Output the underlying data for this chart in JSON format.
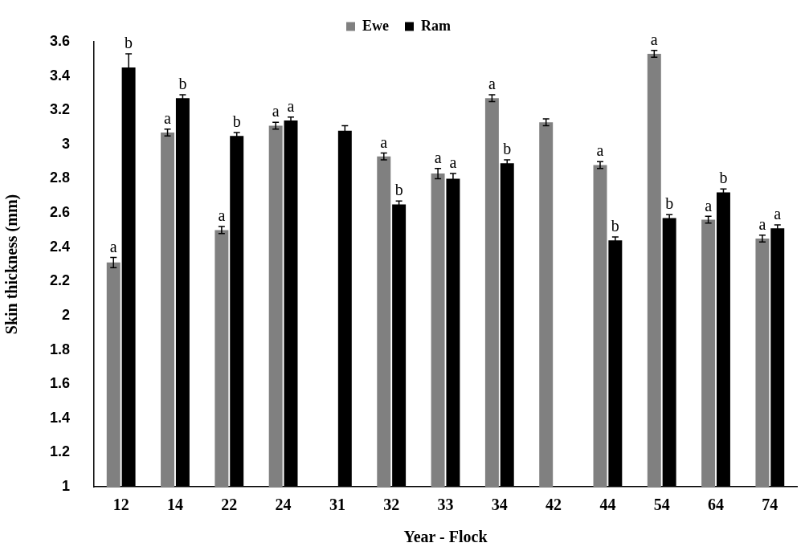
{
  "chart_data": {
    "type": "bar",
    "xlabel": "Year - Flock",
    "ylabel": "Skin thickness (mm)",
    "categories": [
      "12",
      "14",
      "22",
      "24",
      "31",
      "32",
      "33",
      "34",
      "42",
      "44",
      "54",
      "64",
      "74"
    ],
    "series": [
      {
        "name": "Ewe",
        "color": "#808080",
        "values": [
          2.31,
          3.07,
          2.5,
          3.11,
          null,
          2.93,
          2.83,
          3.27,
          3.13,
          2.88,
          3.53,
          2.56,
          2.45
        ],
        "errors": [
          0.03,
          0.02,
          0.02,
          0.02,
          null,
          0.02,
          0.03,
          0.02,
          0.02,
          0.02,
          0.02,
          0.02,
          0.02
        ],
        "value_labels": [
          "a",
          "a",
          "a",
          "a",
          null,
          "a",
          "a",
          "a",
          null,
          "a",
          "a",
          "a",
          "a"
        ]
      },
      {
        "name": "Ram",
        "color": "#000000",
        "values": [
          3.45,
          3.27,
          3.05,
          3.14,
          3.08,
          2.65,
          2.8,
          2.89,
          null,
          2.44,
          2.57,
          2.72,
          2.51
        ],
        "errors": [
          0.08,
          0.02,
          0.02,
          0.02,
          0.03,
          0.02,
          0.03,
          0.02,
          null,
          0.02,
          0.02,
          0.02,
          0.02
        ],
        "value_labels": [
          "b",
          "b",
          "b",
          "a",
          null,
          "b",
          "a",
          "b",
          null,
          "b",
          "b",
          "b",
          "a"
        ]
      }
    ],
    "ylim": [
      1,
      3.6
    ],
    "yticks": [
      1,
      1.2,
      1.4,
      1.6,
      1.8,
      2,
      2.2,
      2.4,
      2.6,
      2.8,
      3,
      3.2,
      3.4,
      3.6
    ],
    "grid": false,
    "legend": "top"
  }
}
